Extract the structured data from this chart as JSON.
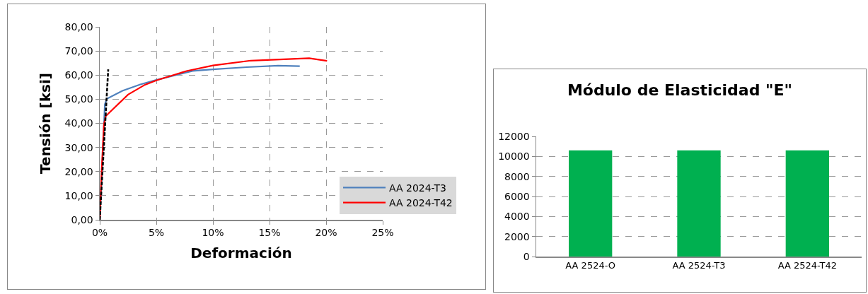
{
  "chart_data": [
    {
      "type": "line",
      "xlabel": "Deformación",
      "ylabel": "Tensión [ksi]",
      "series": [
        {
          "name": "AA 2024-T3",
          "color": "#4f81bd",
          "x": [
            0,
            0.2,
            0.45,
            0.63,
            2,
            3.58,
            5,
            8.2,
            10,
            13,
            15.75,
            17.67
          ],
          "values": [
            0,
            20,
            47.9,
            50.2,
            53.5,
            56.1,
            58,
            61.7,
            62.4,
            63.3,
            63.9,
            63.7
          ]
        },
        {
          "name": "AA 2024-T42",
          "color": "#ff0000",
          "x": [
            0,
            0.17,
            0.37,
            0.53,
            2.5,
            4,
            5,
            7.67,
            10,
            13.33,
            18.5,
            20.08
          ],
          "values": [
            0,
            20.7,
            39.5,
            43,
            51.9,
            56,
            57.8,
            61.7,
            64,
            66,
            67,
            65.9
          ]
        },
        {
          "color": "#000000",
          "line_style": "dashed",
          "x": [
            0,
            0.75
          ],
          "values": [
            0,
            62.4
          ]
        }
      ],
      "xlim": [
        0,
        25
      ],
      "xticks": [
        {
          "value": 0,
          "label": "0%"
        },
        {
          "value": 5,
          "label": "5%"
        },
        {
          "value": 10,
          "label": "10%"
        },
        {
          "value": 15,
          "label": "15%"
        },
        {
          "value": 20,
          "label": "20%"
        },
        {
          "value": 25,
          "label": "25%"
        }
      ],
      "ylim": [
        0,
        80
      ],
      "yticks": [
        {
          "value": 0,
          "label": "0,00"
        },
        {
          "value": 10,
          "label": "10,00"
        },
        {
          "value": 20,
          "label": "20,00"
        },
        {
          "value": 30,
          "label": "30,00"
        },
        {
          "value": 40,
          "label": "40,00"
        },
        {
          "value": 50,
          "label": "50,00"
        },
        {
          "value": 60,
          "label": "60,00"
        },
        {
          "value": 70,
          "label": "70,00"
        },
        {
          "value": 80,
          "label": "80,00"
        }
      ],
      "grid": true,
      "legend": "bottom right",
      "marker": "none"
    },
    {
      "type": "bar",
      "title": "Módulo de Elasticidad \"E\"",
      "categories": [
        "AA 2524-O",
        "AA 2524-T3",
        "AA 2524-T42"
      ],
      "values": [
        10600,
        10600,
        10600
      ],
      "color": "#00b050",
      "ylim": [
        0,
        12000
      ],
      "yticks": [
        0,
        2000,
        4000,
        6000,
        8000,
        10000,
        12000
      ],
      "grid": "y"
    }
  ]
}
